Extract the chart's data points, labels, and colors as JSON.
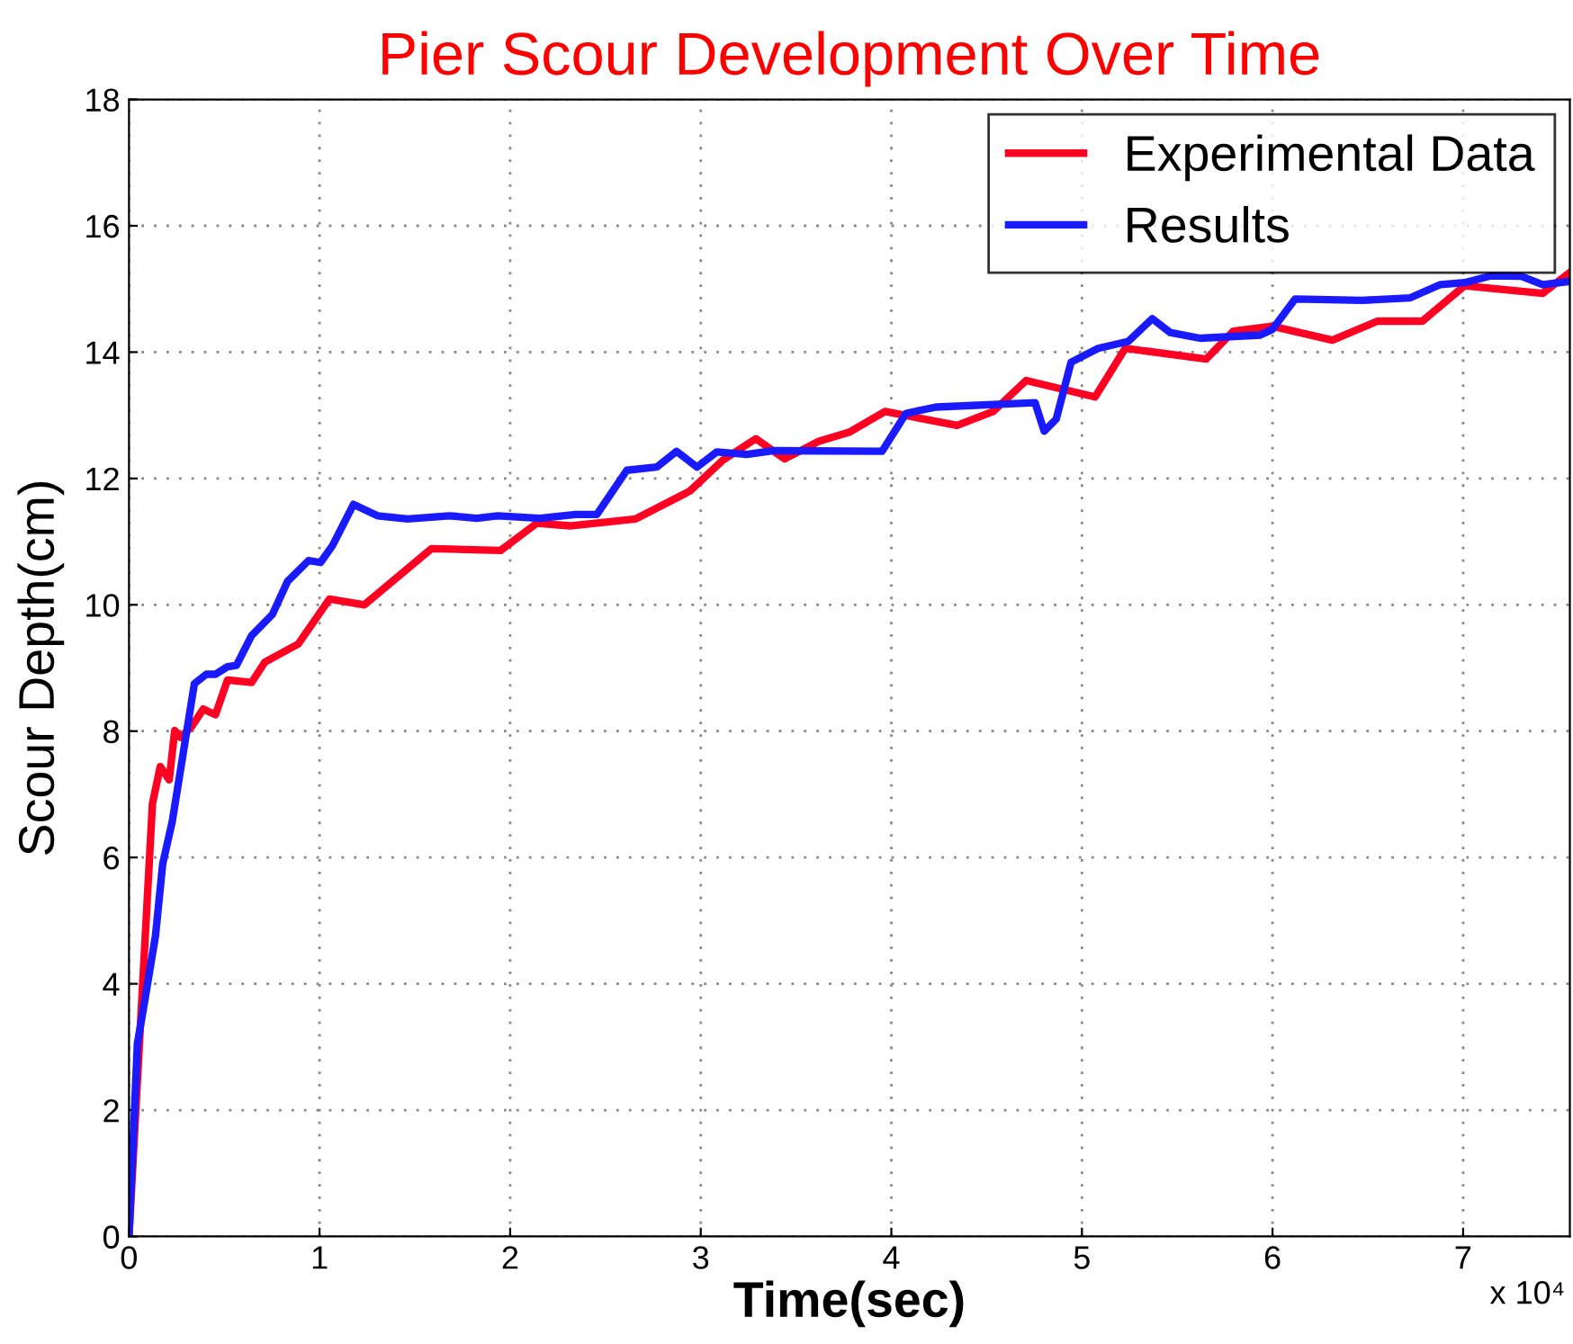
{
  "chart_data": {
    "type": "line",
    "title": "Pier Scour Development Over Time",
    "xlabel": "Time(sec)",
    "ylabel": "Scour Depth(cm)",
    "annotations": [
      "x 10⁴"
    ],
    "xlim": [
      0,
      7.56
    ],
    "ylim": [
      0,
      18
    ],
    "xticks": [
      0,
      1,
      2,
      3,
      4,
      5,
      6,
      7
    ],
    "yticks": [
      0,
      2,
      4,
      6,
      8,
      10,
      12,
      14,
      16,
      18
    ],
    "grid": true,
    "legend": "top right",
    "line_style": "solid",
    "marker": "none",
    "series": [
      {
        "name": "Experimental Data",
        "color": "#ff0022",
        "x": [
          0,
          0.123,
          0.164,
          0.211,
          0.24,
          0.271,
          0.328,
          0.39,
          0.454,
          0.517,
          0.643,
          0.712,
          0.888,
          1.052,
          1.235,
          1.588,
          1.95,
          2.139,
          2.313,
          2.659,
          2.943,
          3.116,
          3.289,
          3.44,
          3.62,
          3.778,
          3.967,
          4.345,
          4.534,
          4.707,
          5.069,
          5.227,
          5.652,
          5.794,
          5.999,
          6.314,
          6.55,
          6.786,
          7.007,
          7.417,
          7.56
        ],
        "values": [
          0,
          6.85,
          7.44,
          7.23,
          8.01,
          7.9,
          8.07,
          8.35,
          8.26,
          8.81,
          8.77,
          9.09,
          9.38,
          10.09,
          10.0,
          10.89,
          10.86,
          11.29,
          11.25,
          11.36,
          11.8,
          12.29,
          12.63,
          12.31,
          12.59,
          12.73,
          13.06,
          12.84,
          13.06,
          13.55,
          13.29,
          14.06,
          13.89,
          14.33,
          14.41,
          14.19,
          14.49,
          14.49,
          15.05,
          14.93,
          15.26
        ]
      },
      {
        "name": "Results",
        "color": "#1a1aff",
        "x": [
          0,
          0.044,
          0.082,
          0.139,
          0.177,
          0.227,
          0.343,
          0.406,
          0.454,
          0.517,
          0.564,
          0.643,
          0.753,
          0.832,
          0.942,
          1.005,
          1.068,
          1.178,
          1.304,
          1.462,
          1.682,
          1.824,
          1.935,
          2.155,
          2.344,
          2.455,
          2.612,
          2.769,
          2.873,
          2.98,
          3.084,
          3.242,
          3.384,
          3.951,
          4.077,
          4.234,
          4.754,
          4.802,
          4.865,
          4.943,
          5.085,
          5.243,
          5.369,
          5.463,
          5.62,
          5.935,
          5.999,
          6.118,
          6.471,
          6.723,
          6.881,
          7.007,
          7.148,
          7.306,
          7.417,
          7.56
        ],
        "values": [
          0,
          3.05,
          3.72,
          4.76,
          5.9,
          6.57,
          8.75,
          8.9,
          8.9,
          9.02,
          9.04,
          9.51,
          9.85,
          10.37,
          10.7,
          10.67,
          10.94,
          11.59,
          11.41,
          11.36,
          11.41,
          11.37,
          11.41,
          11.37,
          11.43,
          11.43,
          12.13,
          12.18,
          12.43,
          12.18,
          12.42,
          12.38,
          12.44,
          12.43,
          13.03,
          13.13,
          13.2,
          12.75,
          12.94,
          13.84,
          14.06,
          14.17,
          14.53,
          14.31,
          14.22,
          14.27,
          14.36,
          14.84,
          14.82,
          14.86,
          15.07,
          15.1,
          15.21,
          15.2,
          15.07,
          15.12
        ]
      }
    ]
  }
}
